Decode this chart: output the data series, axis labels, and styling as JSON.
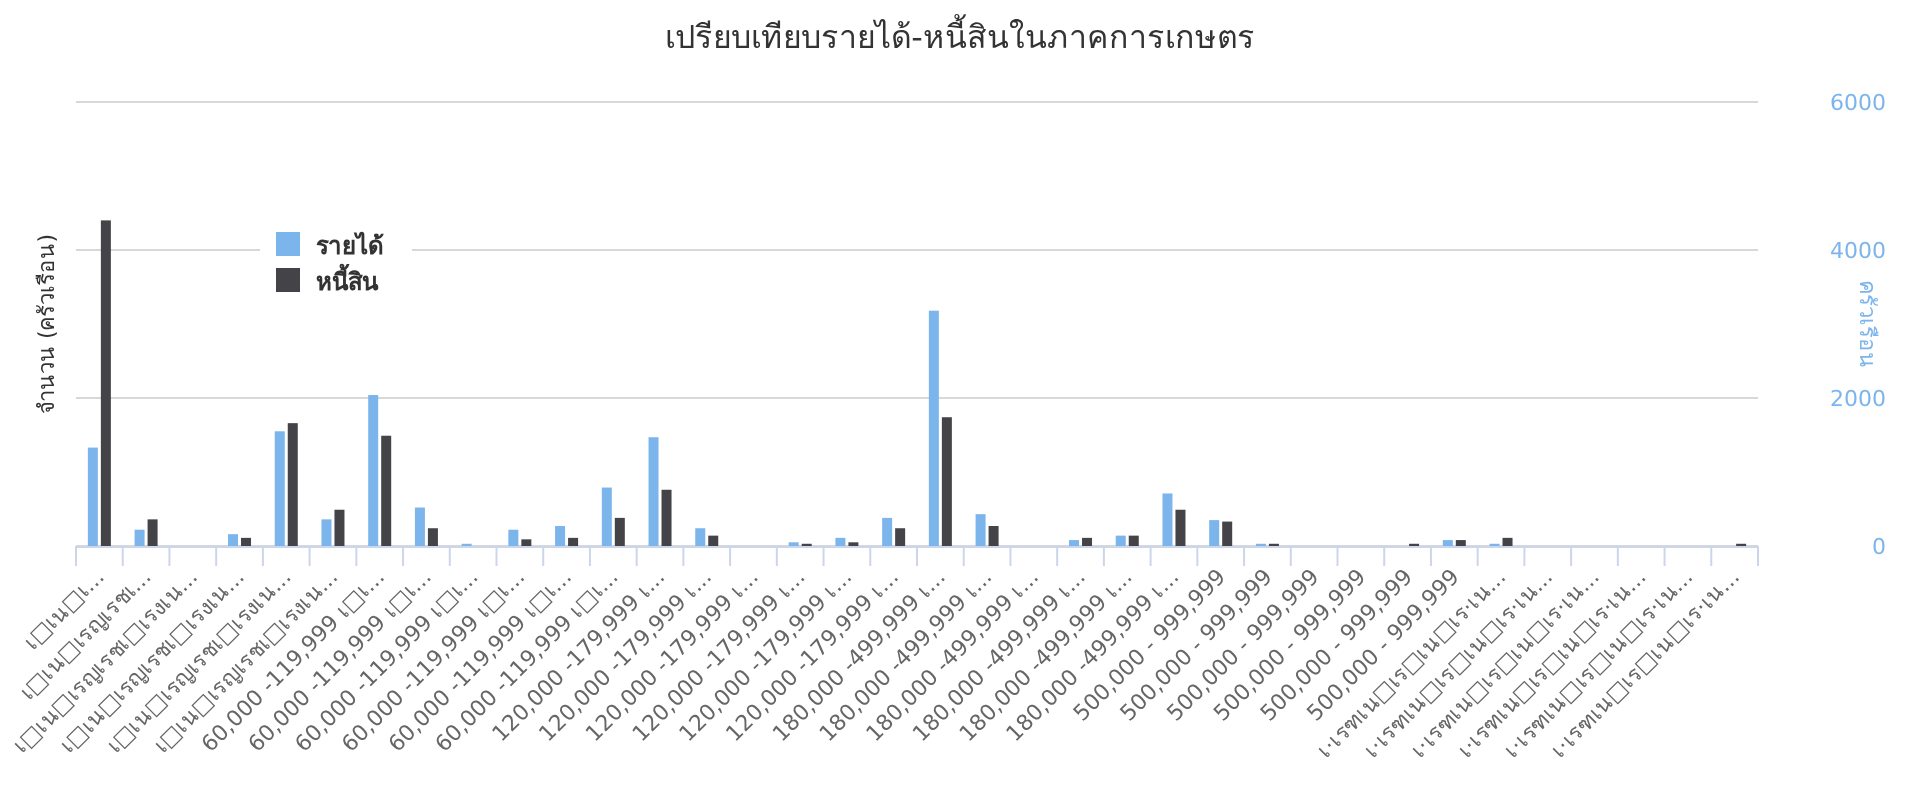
{
  "chart_data": {
    "type": "bar",
    "title": "เปรียบเทียบรายได้-หนี้สินในภาคการเกษตร",
    "ylabel": "จำนวน (ครัวเรือน)",
    "y2label": "ครัวเรือน",
    "categories": [
      "เ□เน□เ...",
      "เ□เน□เรญเรชเ...",
      "เ□เน□เรญเรชเ□เรงเน...",
      "เ□เน□เรญเรชเ□เรงเน...",
      "เ□เน□เรญเรชเ□เรงเน...",
      "เ□เน□เรญเรชเ□เรงเน...",
      "60,000 -119,999 เ□เ...",
      "60,000 -119,999 เ□เ...",
      "60,000 -119,999 เ□เ...",
      "60,000 -119,999 เ□เ...",
      "60,000 -119,999 เ□เ...",
      "60,000 -119,999 เ□เ...",
      "120,000 -179,999 เ...",
      "120,000 -179,999 เ...",
      "120,000 -179,999 เ...",
      "120,000 -179,999 เ...",
      "120,000 -179,999 เ...",
      "120,000 -179,999 เ...",
      "180,000 -499,999 เ...",
      "180,000 -499,999 เ...",
      "180,000 -499,999 เ...",
      "180,000 -499,999 เ...",
      "180,000 -499,999 เ...",
      "180,000 -499,999 เ...",
      "500,000 - 999,999",
      "500,000 - 999,999",
      "500,000 - 999,999",
      "500,000 - 999,999",
      "500,000 - 999,999",
      "500,000 - 999,999",
      "เ·เรฑเน□เร□เน□เร·เน...",
      "เ·เรฑเน□เร□เน□เร·เน...",
      "เ·เรฑเน□เร□เน□เร·เน...",
      "เ·เรฑเน□เร□เน□เร·เน...",
      "เ·เรฑเน□เร□เน□เร·เน...",
      "เ·เรฑเน□เร□เน□เร·เน..."
    ],
    "series": [
      {
        "name": "รายได้",
        "color": "#7cb5ec",
        "axis": "y2",
        "values": [
          1330,
          220,
          0,
          160,
          1550,
          360,
          2040,
          520,
          30,
          220,
          270,
          790,
          1470,
          240,
          0,
          50,
          110,
          380,
          3180,
          430,
          0,
          80,
          140,
          710,
          350,
          30,
          0,
          0,
          0,
          80,
          30,
          0,
          0,
          0,
          0,
          0
        ]
      },
      {
        "name": "หนี้สิน",
        "color": "#434348",
        "axis": "y2",
        "values": [
          4400,
          360,
          0,
          110,
          1660,
          490,
          1490,
          240,
          0,
          90,
          110,
          380,
          760,
          140,
          0,
          30,
          50,
          240,
          1740,
          270,
          0,
          110,
          140,
          490,
          330,
          30,
          0,
          0,
          30,
          80,
          110,
          0,
          0,
          0,
          0,
          30
        ]
      }
    ],
    "y2lim": [
      0,
      6000
    ],
    "y2ticks": [
      0,
      2000,
      4000,
      6000
    ],
    "grid": "y",
    "legend": "top left"
  }
}
